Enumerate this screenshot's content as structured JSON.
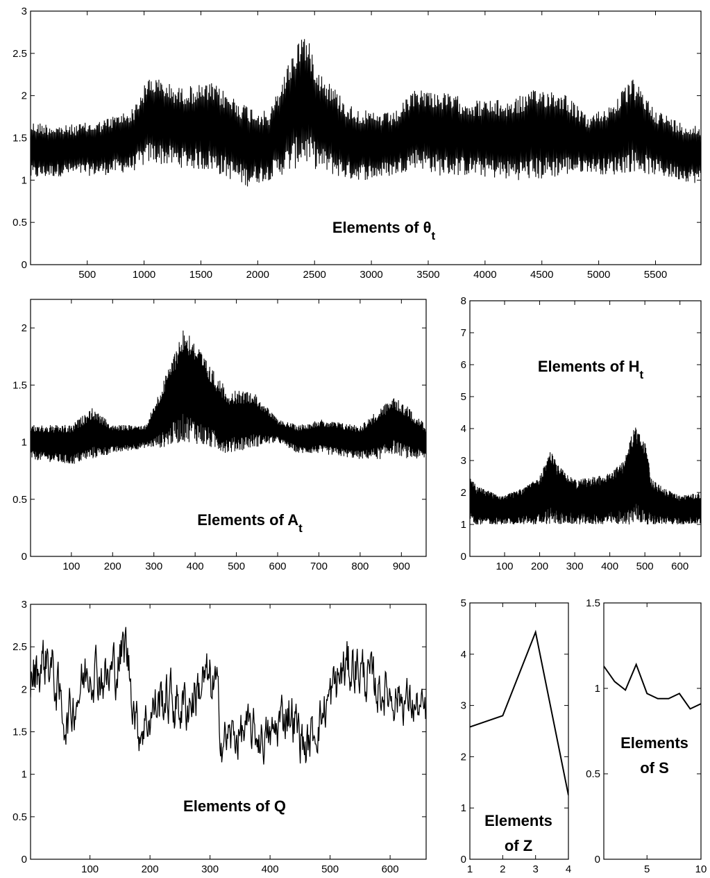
{
  "chart_data": [
    {
      "id": "theta",
      "type": "line",
      "title": "Elements of θ",
      "title_sub": "t",
      "xlim": [
        1,
        5900
      ],
      "ylim": [
        0,
        3
      ],
      "xticks": [
        500,
        1000,
        1500,
        2000,
        2500,
        3000,
        3500,
        4000,
        4500,
        5000,
        5500
      ],
      "yticks": [
        0,
        0.5,
        1,
        1.5,
        2,
        2.5,
        3
      ],
      "series": [
        {
          "kind": "band",
          "x": [
            1,
            300,
            600,
            900,
            1050,
            1300,
            1600,
            1900,
            2100,
            2300,
            2400,
            2550,
            2800,
            3000,
            3200,
            3400,
            3600,
            3900,
            4200,
            4500,
            4700,
            4900,
            5100,
            5300,
            5500,
            5700,
            5900
          ],
          "low": [
            1.0,
            1.05,
            1.05,
            1.1,
            1.2,
            1.15,
            1.1,
            0.92,
            1.0,
            1.1,
            1.2,
            1.1,
            1.0,
            1.0,
            1.05,
            1.15,
            1.05,
            1.05,
            1.0,
            1.0,
            1.05,
            1.1,
            1.05,
            1.1,
            1.05,
            1.0,
            0.95
          ],
          "high": [
            1.7,
            1.65,
            1.7,
            1.85,
            2.25,
            2.1,
            2.15,
            1.9,
            1.8,
            2.5,
            2.8,
            2.3,
            1.9,
            1.8,
            1.8,
            2.1,
            2.05,
            1.95,
            1.95,
            2.1,
            2.05,
            1.75,
            1.9,
            2.2,
            1.85,
            1.7,
            1.65
          ]
        }
      ]
    },
    {
      "id": "A",
      "type": "line",
      "title": "Elements of A",
      "title_sub": "t",
      "xlim": [
        1,
        960
      ],
      "ylim": [
        0,
        2.25
      ],
      "xticks": [
        100,
        200,
        300,
        400,
        500,
        600,
        700,
        800,
        900
      ],
      "yticks": [
        0,
        0.5,
        1,
        1.5,
        2
      ],
      "series": [
        {
          "kind": "band",
          "x": [
            1,
            100,
            150,
            200,
            280,
            320,
            370,
            390,
            430,
            480,
            540,
            600,
            650,
            700,
            800,
            850,
            880,
            920,
            960
          ],
          "low": [
            0.85,
            0.8,
            0.85,
            0.9,
            0.95,
            0.95,
            1.0,
            1.0,
            0.95,
            0.9,
            0.95,
            1.0,
            0.9,
            0.9,
            0.85,
            0.85,
            0.9,
            0.85,
            0.85
          ],
          "high": [
            1.15,
            1.15,
            1.3,
            1.15,
            1.15,
            1.5,
            2.0,
            1.95,
            1.7,
            1.45,
            1.45,
            1.2,
            1.15,
            1.2,
            1.15,
            1.3,
            1.4,
            1.3,
            1.15
          ]
        }
      ]
    },
    {
      "id": "H",
      "type": "line",
      "title": "Elements of H",
      "title_sub": "t",
      "xlim": [
        1,
        660
      ],
      "ylim": [
        0,
        8
      ],
      "xticks": [
        100,
        200,
        300,
        400,
        500,
        600
      ],
      "yticks": [
        0,
        1,
        2,
        3,
        4,
        5,
        6,
        7,
        8
      ],
      "series": [
        {
          "kind": "band",
          "x": [
            1,
            20,
            100,
            160,
            200,
            230,
            260,
            300,
            350,
            400,
            440,
            470,
            500,
            520,
            560,
            600,
            660
          ],
          "low": [
            1.1,
            1.0,
            1.0,
            1.0,
            1.0,
            1.0,
            1.0,
            1.0,
            1.0,
            1.0,
            1.0,
            1.0,
            1.0,
            1.0,
            1.0,
            1.0,
            1.0
          ],
          "high": [
            2.5,
            2.2,
            1.9,
            2.2,
            2.5,
            3.3,
            2.8,
            2.4,
            2.5,
            2.6,
            3.0,
            4.1,
            3.6,
            2.4,
            2.1,
            1.9,
            2.0
          ]
        }
      ]
    },
    {
      "id": "Q",
      "type": "line",
      "title": "Elements of Q",
      "xlim": [
        1,
        660
      ],
      "ylim": [
        0,
        3
      ],
      "xticks": [
        100,
        200,
        300,
        400,
        500,
        600
      ],
      "yticks": [
        0,
        0.5,
        1,
        1.5,
        2,
        2.5,
        3
      ],
      "series": [
        {
          "kind": "noisy_line",
          "x": [
            1,
            30,
            60,
            100,
            130,
            160,
            180,
            220,
            260,
            290,
            310,
            320,
            360,
            400,
            430,
            460,
            480,
            520,
            540,
            580,
            620,
            660
          ],
          "y": [
            2.1,
            2.4,
            1.6,
            2.3,
            2.1,
            2.5,
            1.5,
            1.9,
            1.8,
            2.1,
            2.0,
            1.4,
            1.5,
            1.4,
            1.8,
            1.3,
            1.6,
            2.2,
            2.3,
            2.0,
            1.9,
            1.7
          ],
          "amp": [
            0.3,
            0.3,
            0.25,
            0.3,
            0.3,
            0.3,
            0.25,
            0.3,
            0.3,
            0.3,
            0.3,
            0.25,
            0.25,
            0.25,
            0.3,
            0.25,
            0.25,
            0.3,
            0.3,
            0.25,
            0.25,
            0.2
          ]
        }
      ]
    },
    {
      "id": "Z",
      "type": "line",
      "title_lines": [
        "Elements",
        "of Z"
      ],
      "xlim": [
        1,
        4
      ],
      "ylim": [
        0,
        5
      ],
      "xticks": [
        1,
        2,
        3,
        4
      ],
      "yticks": [
        0,
        1,
        2,
        3,
        4,
        5
      ],
      "series": [
        {
          "x": [
            1,
            2,
            3,
            4
          ],
          "y": [
            2.58,
            2.8,
            4.43,
            1.25
          ]
        }
      ]
    },
    {
      "id": "S",
      "type": "line",
      "title_lines": [
        "Elements",
        "of S"
      ],
      "xlim": [
        1,
        10
      ],
      "ylim": [
        0,
        1.5
      ],
      "xticks": [
        5,
        10
      ],
      "yticks": [
        0,
        0.5,
        1,
        1.5
      ],
      "series": [
        {
          "x": [
            1,
            2,
            3,
            4,
            5,
            6,
            7,
            8,
            9,
            10
          ],
          "y": [
            1.13,
            1.04,
            0.99,
            1.14,
            0.97,
            0.94,
            0.94,
            0.97,
            0.88,
            0.91
          ]
        }
      ]
    }
  ]
}
